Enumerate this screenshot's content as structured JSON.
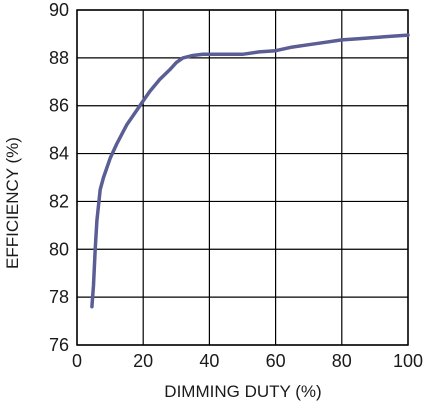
{
  "chart_data": {
    "type": "line",
    "title": "",
    "xlabel": "DIMMING DUTY (%)",
    "ylabel": "EFFICIENCY (%)",
    "xlim": [
      0,
      100
    ],
    "ylim": [
      76,
      90
    ],
    "x_ticks": [
      0,
      20,
      40,
      60,
      80,
      100
    ],
    "y_ticks": [
      76,
      78,
      80,
      82,
      84,
      86,
      88,
      90
    ],
    "grid": true,
    "colors": {
      "line": "#5a5e94",
      "grid": "#000000",
      "text": "#1a1a1a"
    },
    "series": [
      {
        "x": [
          4.5,
          5,
          5.5,
          6,
          7,
          8,
          10,
          12,
          15,
          18,
          20,
          22,
          25,
          28,
          30,
          32,
          35,
          38,
          40,
          45,
          50,
          55,
          60,
          65,
          70,
          75,
          80,
          85,
          90,
          95,
          100
        ],
        "y": [
          77.6,
          78.5,
          80.0,
          81.2,
          82.5,
          83.0,
          83.8,
          84.4,
          85.2,
          85.8,
          86.2,
          86.6,
          87.1,
          87.5,
          87.8,
          88.0,
          88.1,
          88.15,
          88.15,
          88.15,
          88.15,
          88.25,
          88.3,
          88.45,
          88.55,
          88.65,
          88.75,
          88.8,
          88.85,
          88.9,
          88.95
        ]
      }
    ]
  }
}
